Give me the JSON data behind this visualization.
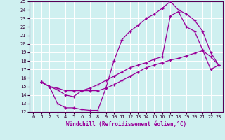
{
  "xlabel": "Windchill (Refroidissement éolien,°C)",
  "line_color": "#990099",
  "bg_color": "#cff0f0",
  "grid_color": "#ffffff",
  "xlim": [
    -0.5,
    23.5
  ],
  "ylim": [
    12,
    25
  ],
  "xticks": [
    0,
    1,
    2,
    3,
    4,
    5,
    6,
    7,
    8,
    9,
    10,
    11,
    12,
    13,
    14,
    15,
    16,
    17,
    18,
    19,
    20,
    21,
    22,
    23
  ],
  "yticks": [
    12,
    13,
    14,
    15,
    16,
    17,
    18,
    19,
    20,
    21,
    22,
    23,
    24,
    25
  ],
  "line1_x": [
    1,
    2,
    3,
    4,
    5,
    6,
    7,
    8,
    9,
    10,
    11,
    12,
    13,
    14,
    15,
    16,
    17,
    18,
    19,
    20,
    21,
    22,
    23
  ],
  "line1_y": [
    15.5,
    15.0,
    13.0,
    12.5,
    12.5,
    12.3,
    12.2,
    12.2,
    14.8,
    18.0,
    20.5,
    21.5,
    22.2,
    23.0,
    23.5,
    24.2,
    25.0,
    24.0,
    23.5,
    22.8,
    21.5,
    19.0,
    17.5
  ],
  "line2_x": [
    1,
    2,
    3,
    4,
    5,
    6,
    7,
    8,
    9,
    10,
    11,
    12,
    13,
    14,
    15,
    16,
    17,
    18,
    19,
    20,
    21,
    22,
    23
  ],
  "line2_y": [
    15.5,
    15.0,
    14.8,
    14.5,
    14.5,
    14.5,
    14.5,
    14.5,
    14.8,
    15.2,
    15.7,
    16.2,
    16.7,
    17.2,
    17.5,
    17.8,
    18.1,
    18.3,
    18.6,
    18.9,
    19.2,
    18.5,
    17.5
  ],
  "line3_x": [
    1,
    2,
    3,
    4,
    5,
    6,
    7,
    8,
    9,
    10,
    11,
    12,
    13,
    14,
    15,
    16,
    17,
    18,
    19,
    20,
    21,
    22,
    23
  ],
  "line3_y": [
    15.5,
    15.0,
    14.6,
    14.0,
    13.8,
    14.5,
    14.8,
    15.2,
    15.7,
    16.2,
    16.7,
    17.2,
    17.5,
    17.8,
    18.2,
    18.5,
    23.3,
    23.8,
    22.0,
    21.5,
    19.3,
    17.0,
    17.5
  ]
}
